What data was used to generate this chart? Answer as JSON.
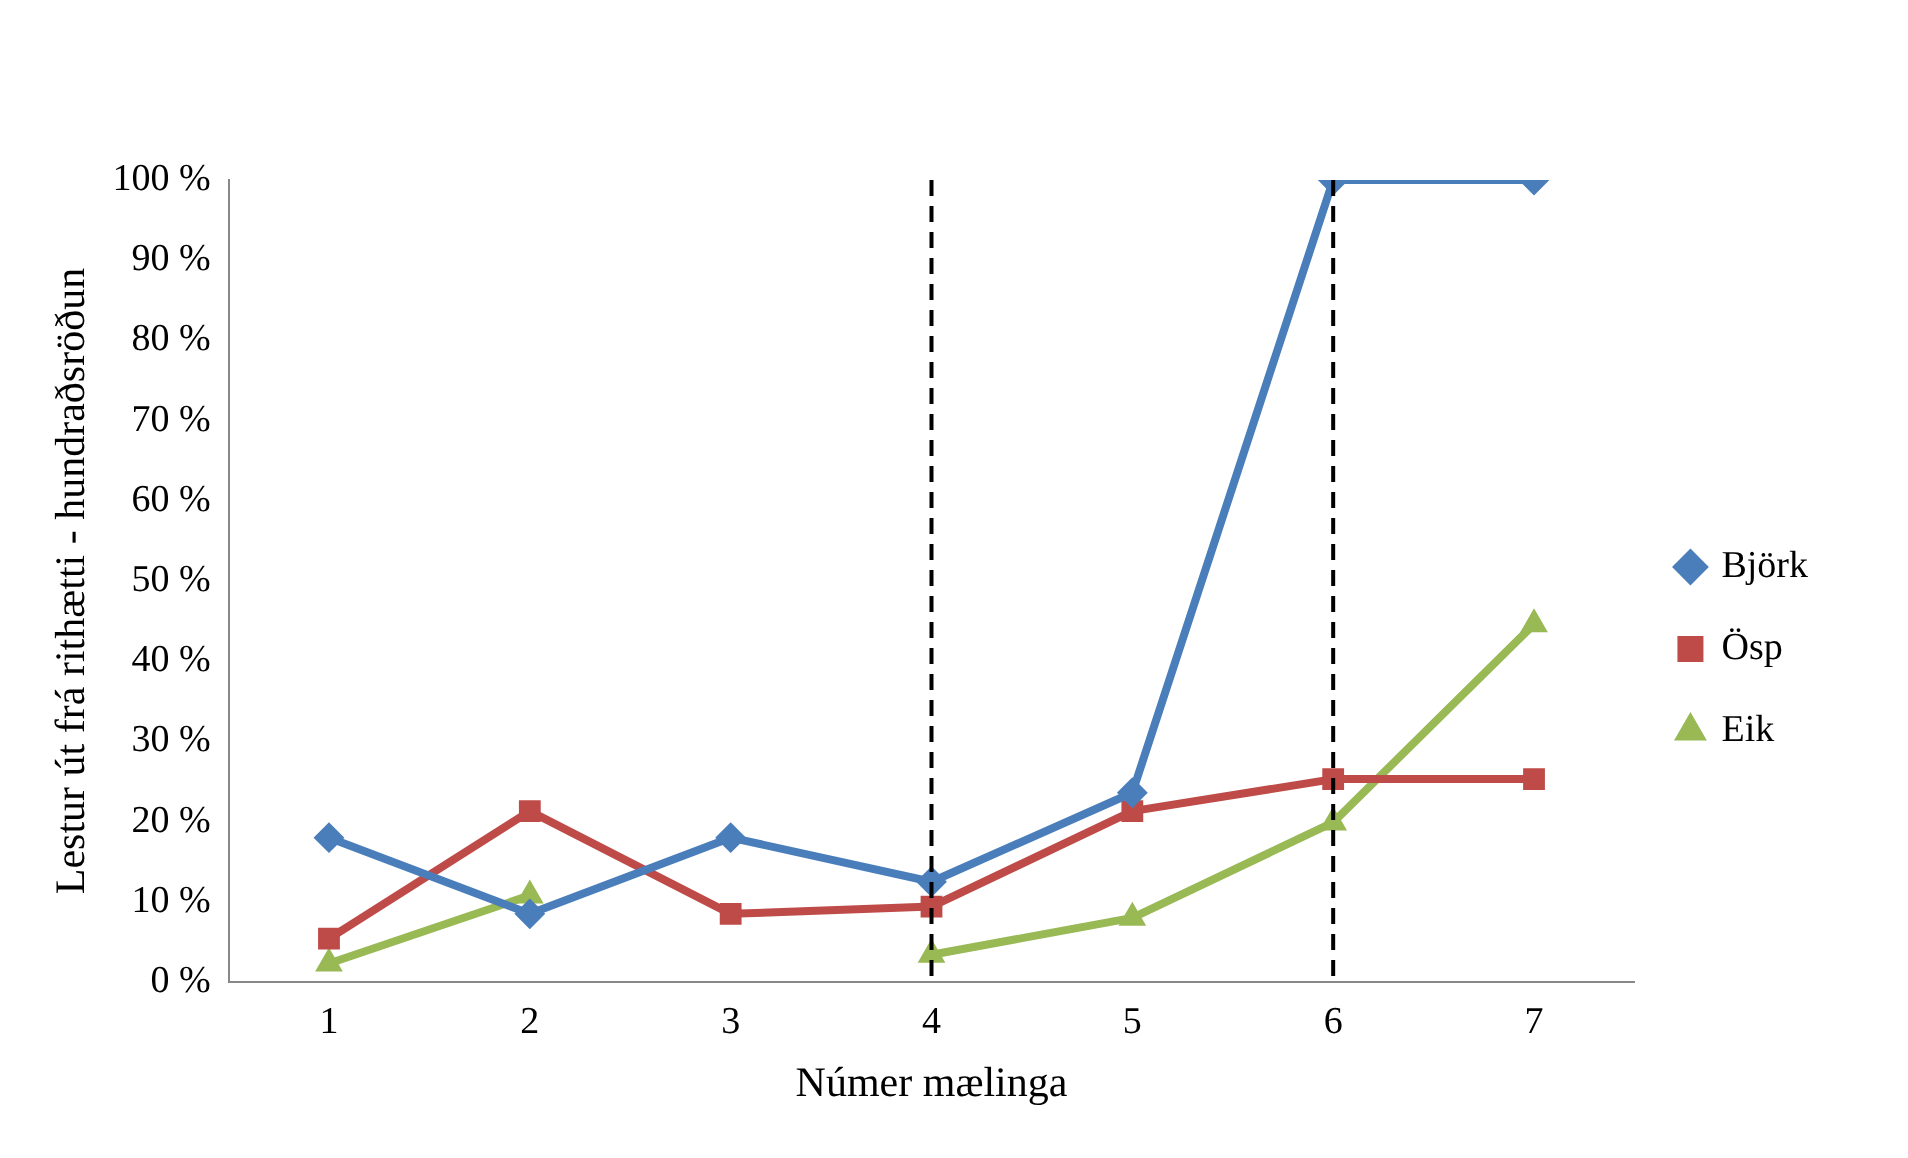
{
  "chart_data": {
    "type": "line",
    "xlabel": "Númer mælinga",
    "ylabel": "Lestur út frá rithætti - hundraðsröðun",
    "categories": [
      "1",
      "2",
      "3",
      "4",
      "5",
      "6",
      "7"
    ],
    "series": [
      {
        "name": "Björk",
        "color": "#4a7ebb",
        "marker": "diamond",
        "values": [
          18,
          8.5,
          18,
          12.5,
          23.6,
          100,
          100
        ]
      },
      {
        "name": "Ösp",
        "color": "#be4b48",
        "marker": "square",
        "values": [
          5.4,
          21.3,
          8.5,
          9.4,
          21.3,
          25.3,
          25.3
        ]
      },
      {
        "name": "Eik",
        "color": "#98b954",
        "marker": "triangle",
        "values": [
          2.3,
          10.8,
          null,
          3.4,
          8,
          19.9,
          44.6
        ]
      }
    ],
    "ylim": [
      0,
      100
    ],
    "yticks": [
      {
        "value": 0,
        "label": "0 %"
      },
      {
        "value": 10,
        "label": "10 %"
      },
      {
        "value": 20,
        "label": "20 %"
      },
      {
        "value": 30,
        "label": "30 %"
      },
      {
        "value": 40,
        "label": "40 %"
      },
      {
        "value": 50,
        "label": "50 %"
      },
      {
        "value": 60,
        "label": "60 %"
      },
      {
        "value": 70,
        "label": "70 %"
      },
      {
        "value": 80,
        "label": "80 %"
      },
      {
        "value": 90,
        "label": "90 %"
      },
      {
        "value": 100,
        "label": "100 %"
      }
    ],
    "ref_lines": [
      {
        "axis": "x",
        "value": "4",
        "color": "#000000",
        "line_style": "dashed"
      },
      {
        "axis": "x",
        "value": "6",
        "color": "#000000",
        "line_style": "dashed"
      }
    ],
    "grid": false,
    "legend": "right",
    "line_style": "solid"
  }
}
